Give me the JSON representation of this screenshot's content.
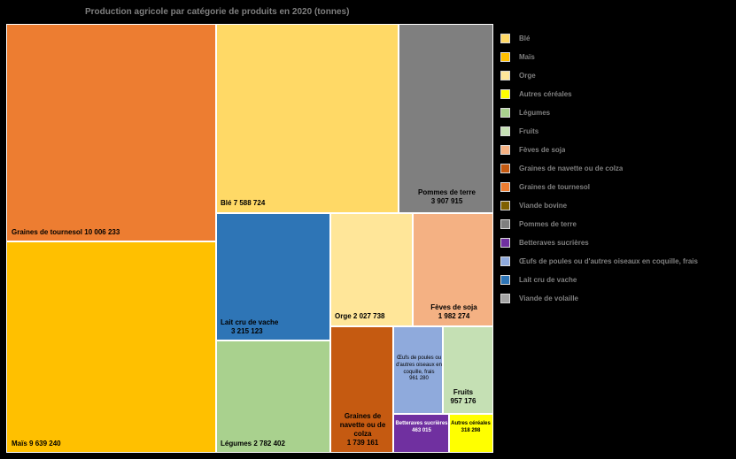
{
  "chart_data": {
    "type": "treemap",
    "title": "Production agricole par catégorie de produits en 2020 (tonnes)",
    "legend_position": "right",
    "values_unit": "tonnes",
    "items": [
      {
        "key": "graines_tournesol",
        "name": "Graines de tournesol",
        "value": 10006233,
        "value_label": "10 006 233",
        "color": "#ed7d31",
        "legend_label": "Graines de tournesol"
      },
      {
        "key": "mais",
        "name": "Maïs",
        "value": 9639240,
        "value_label": "9 639 240",
        "color": "#ffc000",
        "legend_label": "Maïs"
      },
      {
        "key": "ble",
        "name": "Blé",
        "value": 7588724,
        "value_label": "7 588 724",
        "color": "#ffd966",
        "legend_label": "Blé"
      },
      {
        "key": "pommes_terre",
        "name": "Pommes de terre",
        "value": 3907915,
        "value_label": "3 907 915",
        "color": "#7f7f7f",
        "legend_label": "Pommes de terre"
      },
      {
        "key": "lait",
        "name": "Lait cru de vache",
        "value": 3215123,
        "value_label": "3 215 123",
        "color": "#2e75b6",
        "legend_label": "Lait cru de vache"
      },
      {
        "key": "legumes",
        "name": "Légumes",
        "value": 2782402,
        "value_label": "2 782 402",
        "color": "#a9d18e",
        "legend_label": "Légumes"
      },
      {
        "key": "orge",
        "name": "Orge",
        "value": 2027738,
        "value_label": "2 027 738",
        "color": "#ffe699",
        "legend_label": "Orge"
      },
      {
        "key": "soja",
        "name": "Fèves de soja",
        "value": 1982274,
        "value_label": "1 982 274",
        "color": "#f4b183",
        "legend_label": "Fèves de soja"
      },
      {
        "key": "colza",
        "name": "Graines de navette ou de colza",
        "value": 1739161,
        "value_label": "1 739 161",
        "color": "#c55a11",
        "legend_label": "Graines de navette ou de colza"
      },
      {
        "key": "oeufs",
        "name": "Œufs de poules ou d'autres oiseaux en coquille, frais",
        "value": 961280,
        "value_label": "961 280",
        "color": "#8faadc",
        "legend_label": "Œufs de poules ou d'autres oiseaux en coquille, frais"
      },
      {
        "key": "fruits",
        "name": "Fruits",
        "value": 957176,
        "value_label": "957 176",
        "color": "#c5e0b4",
        "legend_label": "Fruits"
      },
      {
        "key": "betteraves",
        "name": "Betteraves sucrières",
        "value": 463015,
        "value_label": "463 015",
        "color": "#7030a0",
        "legend_label": "Betteraves sucrières"
      },
      {
        "key": "autres_cereales",
        "name": "Autres céréales",
        "value": 318298,
        "value_label": "318 298",
        "color": "#ffff00",
        "legend_label": "Autres céréales"
      }
    ],
    "legend_extra_items": [
      {
        "label": "Viande bovine",
        "color": "#7f6000"
      },
      {
        "label": "Viande de volaille",
        "color": "#a5a5a5"
      }
    ]
  }
}
